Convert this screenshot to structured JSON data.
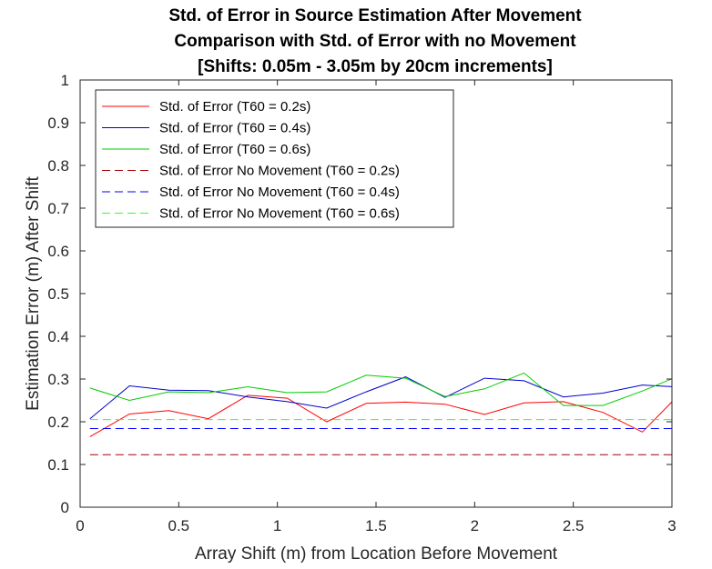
{
  "chart_data": {
    "type": "line",
    "title_lines": [
      "Std. of Error in Source Estimation After Movement",
      "Comparison with Std. of Error with no Movement",
      "[Shifts: 0.05m - 3.05m by 20cm increments]"
    ],
    "xlabel": "Array Shift (m) from Location Before Movement",
    "ylabel": "Estimation Error (m) After Shift",
    "xlim": [
      0,
      3
    ],
    "ylim": [
      0,
      1
    ],
    "xticks": [
      0,
      0.5,
      1,
      1.5,
      2,
      2.5,
      3
    ],
    "xtick_labels": [
      "0",
      "0.5",
      "1",
      "1.5",
      "2",
      "2.5",
      "3"
    ],
    "yticks": [
      0,
      0.1,
      0.2,
      0.3,
      0.4,
      0.5,
      0.6,
      0.7,
      0.8,
      0.9,
      1
    ],
    "ytick_labels": [
      "0",
      "0.1",
      "0.2",
      "0.3",
      "0.4",
      "0.5",
      "0.6",
      "0.7",
      "0.8",
      "0.9",
      "1"
    ],
    "grid": false,
    "legend_position": "top-left",
    "x": [
      0.05,
      0.25,
      0.45,
      0.65,
      0.85,
      1.05,
      1.25,
      1.45,
      1.65,
      1.85,
      2.05,
      2.25,
      2.45,
      2.65,
      2.85,
      3.05
    ],
    "series": [
      {
        "name": "Std. of Error (T60 = 0.2s)",
        "color": "#ff0000",
        "dash": "solid",
        "values": [
          0.165,
          0.218,
          0.226,
          0.207,
          0.262,
          0.255,
          0.2,
          0.243,
          0.246,
          0.241,
          0.217,
          0.244,
          0.247,
          0.222,
          0.176,
          0.27
        ]
      },
      {
        "name": "Std. of Error (T60 = 0.4s)",
        "color": "#0000cc",
        "dash": "solid",
        "values": [
          0.207,
          0.284,
          0.274,
          0.273,
          0.258,
          0.247,
          0.232,
          0.27,
          0.305,
          0.257,
          0.302,
          0.296,
          0.258,
          0.267,
          0.286,
          0.281
        ]
      },
      {
        "name": "Std. of Error (T60 = 0.6s)",
        "color": "#00cc00",
        "dash": "solid",
        "values": [
          0.279,
          0.25,
          0.27,
          0.268,
          0.282,
          0.268,
          0.27,
          0.309,
          0.302,
          0.259,
          0.277,
          0.314,
          0.238,
          0.238,
          0.272,
          0.31
        ]
      },
      {
        "name": "Std. of Error No Movement (T60 = 0.2s)",
        "color": "#a00000",
        "dash": "dashed",
        "values": [
          0.123,
          0.123,
          0.123,
          0.123,
          0.123,
          0.123,
          0.123,
          0.123,
          0.123,
          0.123,
          0.123,
          0.123,
          0.123,
          0.123,
          0.123,
          0.123
        ]
      },
      {
        "name": "Std. of Error No Movement (T60 = 0.4s)",
        "color": "#0000ff",
        "dash": "dashed",
        "values": [
          0.184,
          0.184,
          0.184,
          0.184,
          0.184,
          0.184,
          0.184,
          0.184,
          0.184,
          0.184,
          0.184,
          0.184,
          0.184,
          0.184,
          0.184,
          0.184
        ]
      },
      {
        "name": "Std. of Error No Movement (T60 = 0.6s)",
        "color": "#33ff33",
        "dash": "dashed",
        "values": [
          0.205,
          0.205,
          0.205,
          0.205,
          0.205,
          0.205,
          0.205,
          0.205,
          0.205,
          0.205,
          0.205,
          0.205,
          0.205,
          0.205,
          0.205,
          0.205
        ]
      }
    ]
  }
}
